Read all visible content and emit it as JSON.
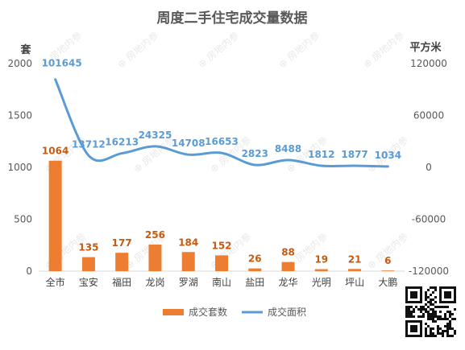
{
  "chart_data": {
    "type": "bar+line",
    "title": "周度二手住宅成交量数据",
    "left_axis_unit": "套",
    "right_axis_unit": "平方米",
    "categories": [
      "全市",
      "宝安",
      "福田",
      "龙岗",
      "罗湖",
      "南山",
      "盐田",
      "龙华",
      "光明",
      "坪山",
      "大鹏"
    ],
    "series": [
      {
        "name": "成交套数",
        "type": "bar",
        "axis": "left",
        "color": "#ED7D31",
        "values": [
          1064,
          135,
          177,
          256,
          184,
          152,
          26,
          88,
          19,
          21,
          6
        ]
      },
      {
        "name": "成交面积",
        "type": "line",
        "axis": "right",
        "color": "#5B9BD5",
        "values": [
          101645,
          13712,
          16213,
          24325,
          14708,
          16653,
          2823,
          8488,
          1812,
          1877,
          1034
        ]
      }
    ],
    "left_ylim": [
      0,
      2000
    ],
    "left_ticks": [
      0,
      500,
      1000,
      1500,
      2000
    ],
    "right_ylim": [
      -120000,
      120000
    ],
    "right_ticks": [
      -120000,
      -60000,
      0,
      60000,
      120000
    ],
    "right_tick_labels": [
      "-120000",
      "-60000",
      "0",
      "60000",
      "120000"
    ],
    "grid": false,
    "legend_position": "bottom"
  },
  "watermark": "房地内参",
  "qr_code": "qr-code"
}
